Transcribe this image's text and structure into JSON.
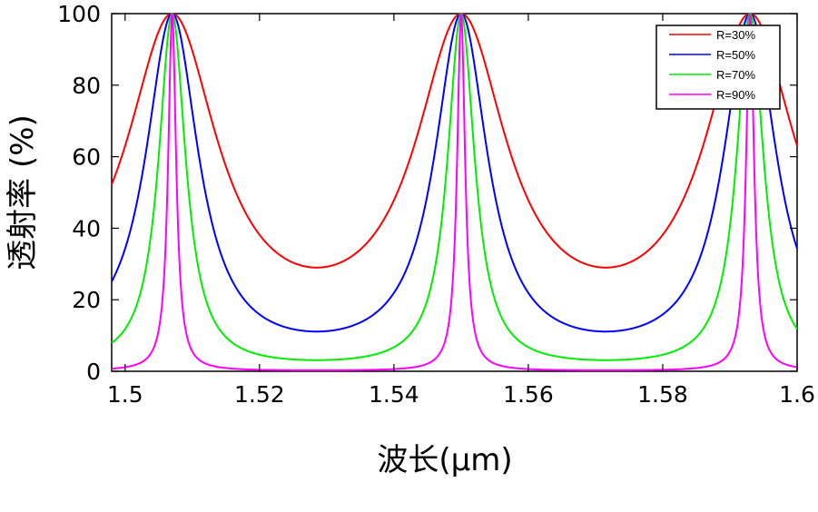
{
  "chart_data": {
    "type": "line",
    "title": "",
    "xlabel": "波长(μm)",
    "ylabel": "透射率 (%)",
    "xlim": [
      1.498,
      1.6
    ],
    "ylim": [
      0,
      100
    ],
    "xticks": [
      1.5,
      1.52,
      1.54,
      1.56,
      1.58,
      1.6
    ],
    "xtick_labels": [
      "1.5",
      "1.52",
      "1.54",
      "1.56",
      "1.58",
      "1.6"
    ],
    "yticks": [
      0,
      20,
      40,
      60,
      80,
      100
    ],
    "ytick_labels": [
      "0",
      "20",
      "40",
      "60",
      "80",
      "100"
    ],
    "grid": false,
    "legend_position": "top-right",
    "peaks_um": [
      1.507,
      1.55,
      1.593
    ],
    "minima_um": [
      1.5285,
      1.5715
    ],
    "series": [
      {
        "name": "R=30%",
        "color": "#ff0000",
        "reflectivity": 0.3,
        "min_transmission": 28.5,
        "points": [
          [
            1.498,
            54
          ],
          [
            1.507,
            100
          ],
          [
            1.5285,
            28.5
          ],
          [
            1.55,
            100
          ],
          [
            1.5715,
            29
          ],
          [
            1.593,
            100
          ],
          [
            1.6,
            74
          ]
        ]
      },
      {
        "name": "R=50%",
        "color": "#0000ff",
        "reflectivity": 0.5,
        "min_transmission": 10.5,
        "points": [
          [
            1.498,
            27
          ],
          [
            1.507,
            100
          ],
          [
            1.5285,
            10.5
          ],
          [
            1.55,
            100
          ],
          [
            1.5715,
            11
          ],
          [
            1.593,
            100
          ],
          [
            1.6,
            46
          ]
        ]
      },
      {
        "name": "R=70%",
        "color": "#00ee00",
        "reflectivity": 0.7,
        "min_transmission": 3.1,
        "points": [
          [
            1.498,
            8.5
          ],
          [
            1.507,
            100
          ],
          [
            1.5285,
            3.1
          ],
          [
            1.55,
            100
          ],
          [
            1.5715,
            3.2
          ],
          [
            1.593,
            100
          ],
          [
            1.6,
            18
          ]
        ]
      },
      {
        "name": "R=90%",
        "color": "#ff00ff",
        "reflectivity": 0.9,
        "min_transmission": 0.3,
        "points": [
          [
            1.498,
            0.7
          ],
          [
            1.507,
            100
          ],
          [
            1.5285,
            0.3
          ],
          [
            1.55,
            100
          ],
          [
            1.5715,
            0.3
          ],
          [
            1.593,
            100
          ],
          [
            1.6,
            1.5
          ]
        ]
      }
    ]
  }
}
